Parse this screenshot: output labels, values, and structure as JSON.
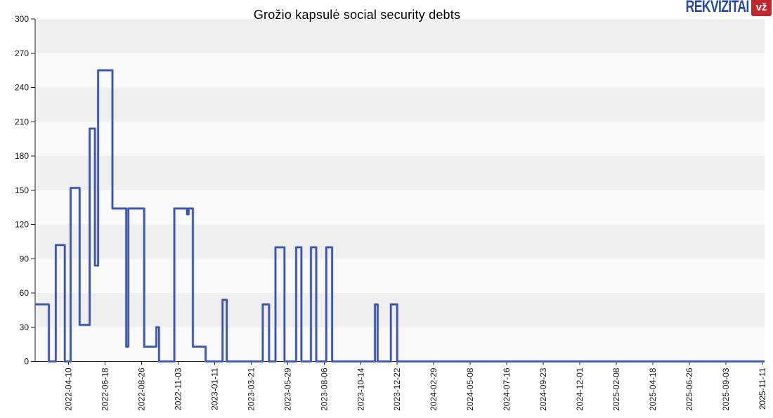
{
  "title": "Grožio kapsulė social security debts",
  "logo": {
    "text": "REKVIZITAI",
    "badge": "vž",
    "brand_blue": "#2b4b9c",
    "brand_red": "#c1262d"
  },
  "chart_data": {
    "type": "line",
    "line_style": "step-after",
    "title": "Grožio kapsulė social security debts",
    "line_color": "#3c55a5",
    "line_halo_color": "#9aa6d0",
    "axis_color": "#222222",
    "label_color": "#111111",
    "band_dark": "#efefef",
    "band_light": "#f9f9f9",
    "grid": false,
    "legend": "none",
    "ylim": [
      0,
      300
    ],
    "y_tick_step": 30,
    "y_ticks": [
      0,
      30,
      60,
      90,
      120,
      150,
      180,
      210,
      240,
      270,
      300
    ],
    "x_domain": {
      "start": "2022-02-06",
      "end": "2025-11-15"
    },
    "x_tick_labels": [
      "2022-04-10",
      "2022-06-18",
      "2022-08-26",
      "2022-11-03",
      "2023-01-11",
      "2023-03-21",
      "2023-05-29",
      "2023-08-06",
      "2023-10-14",
      "2023-12-22",
      "2024-02-29",
      "2024-05-08",
      "2024-07-16",
      "2024-09-23",
      "2024-12-01",
      "2025-02-08",
      "2025-04-18",
      "2025-06-26",
      "2025-09-03",
      "2025-11-11"
    ],
    "steps": [
      {
        "date": "2022-02-06",
        "value": 50
      },
      {
        "date": "2022-03-04",
        "value": 0
      },
      {
        "date": "2022-03-17",
        "value": 102
      },
      {
        "date": "2022-04-03",
        "value": 0
      },
      {
        "date": "2022-04-14",
        "value": 152
      },
      {
        "date": "2022-05-01",
        "value": 32
      },
      {
        "date": "2022-05-20",
        "value": 204
      },
      {
        "date": "2022-05-30",
        "value": 84
      },
      {
        "date": "2022-06-05",
        "value": 255
      },
      {
        "date": "2022-07-02",
        "value": 134
      },
      {
        "date": "2022-07-28",
        "value": 13
      },
      {
        "date": "2022-08-01",
        "value": 134
      },
      {
        "date": "2022-08-31",
        "value": 13
      },
      {
        "date": "2022-09-23",
        "value": 30
      },
      {
        "date": "2022-09-28",
        "value": 0
      },
      {
        "date": "2022-10-27",
        "value": 134
      },
      {
        "date": "2022-11-20",
        "value": 129
      },
      {
        "date": "2022-11-23",
        "value": 134
      },
      {
        "date": "2022-12-01",
        "value": 13
      },
      {
        "date": "2022-12-25",
        "value": 0
      },
      {
        "date": "2023-01-26",
        "value": 54
      },
      {
        "date": "2023-02-03",
        "value": 0
      },
      {
        "date": "2023-04-12",
        "value": 50
      },
      {
        "date": "2023-04-24",
        "value": 0
      },
      {
        "date": "2023-05-06",
        "value": 100
      },
      {
        "date": "2023-05-23",
        "value": 0
      },
      {
        "date": "2023-06-14",
        "value": 100
      },
      {
        "date": "2023-06-24",
        "value": 0
      },
      {
        "date": "2023-07-12",
        "value": 100
      },
      {
        "date": "2023-07-22",
        "value": 0
      },
      {
        "date": "2023-08-10",
        "value": 100
      },
      {
        "date": "2023-08-21",
        "value": 0
      },
      {
        "date": "2023-11-10",
        "value": 50
      },
      {
        "date": "2023-11-15",
        "value": 0
      },
      {
        "date": "2023-12-10",
        "value": 50
      },
      {
        "date": "2023-12-22",
        "value": 0
      }
    ]
  }
}
